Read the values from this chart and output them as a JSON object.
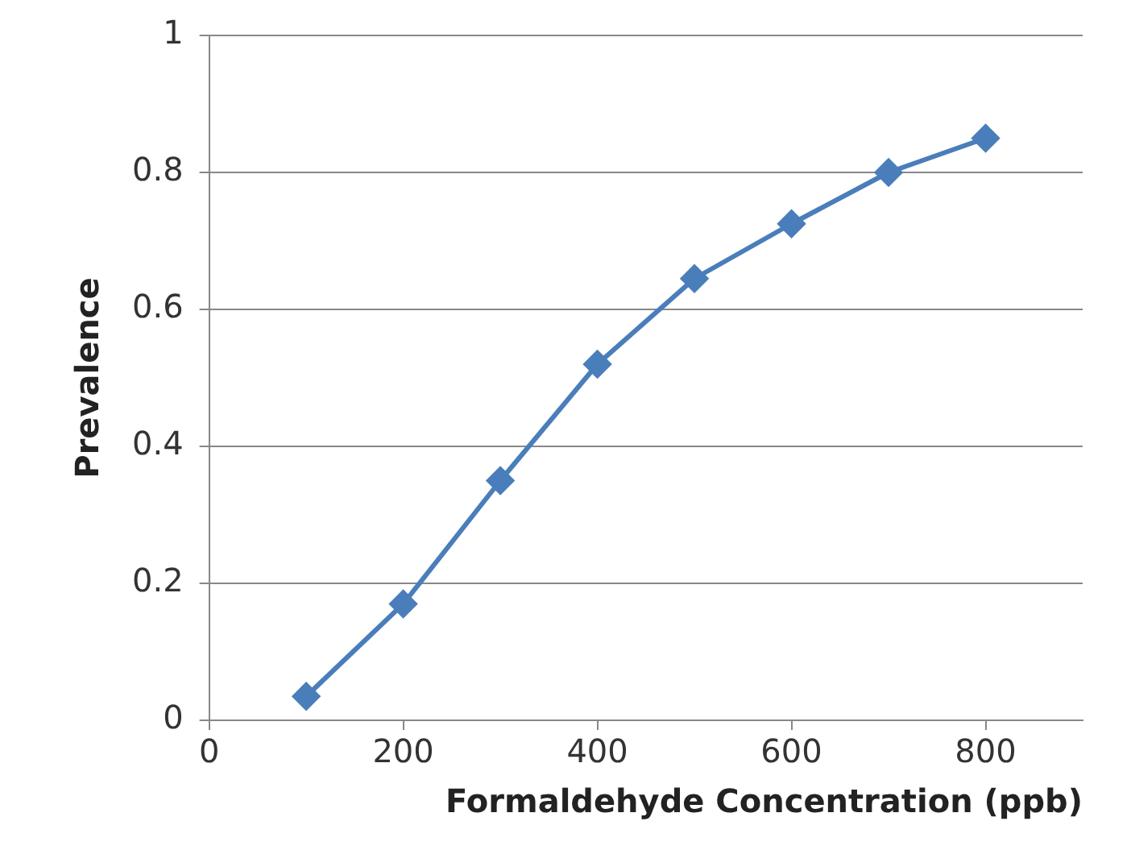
{
  "chart_data": {
    "type": "line",
    "xlabel": "Formaldehyde Concentration (ppb)",
    "ylabel": "Prevalence",
    "x": [
      100,
      200,
      300,
      400,
      500,
      600,
      700,
      800
    ],
    "series": [
      {
        "color": "#4a7ebb",
        "values": [
          0.035,
          0.17,
          0.35,
          0.52,
          0.645,
          0.725,
          0.8,
          0.85
        ]
      }
    ],
    "xlim": [
      0,
      900
    ],
    "xticks": [
      0,
      200,
      400,
      600,
      800
    ],
    "ylim": [
      0,
      1
    ],
    "yticks": [
      0,
      0.2,
      0.4,
      0.6,
      0.8,
      1
    ],
    "grid": "y",
    "marker": "diamond",
    "line_style": "solid",
    "legend": false
  }
}
